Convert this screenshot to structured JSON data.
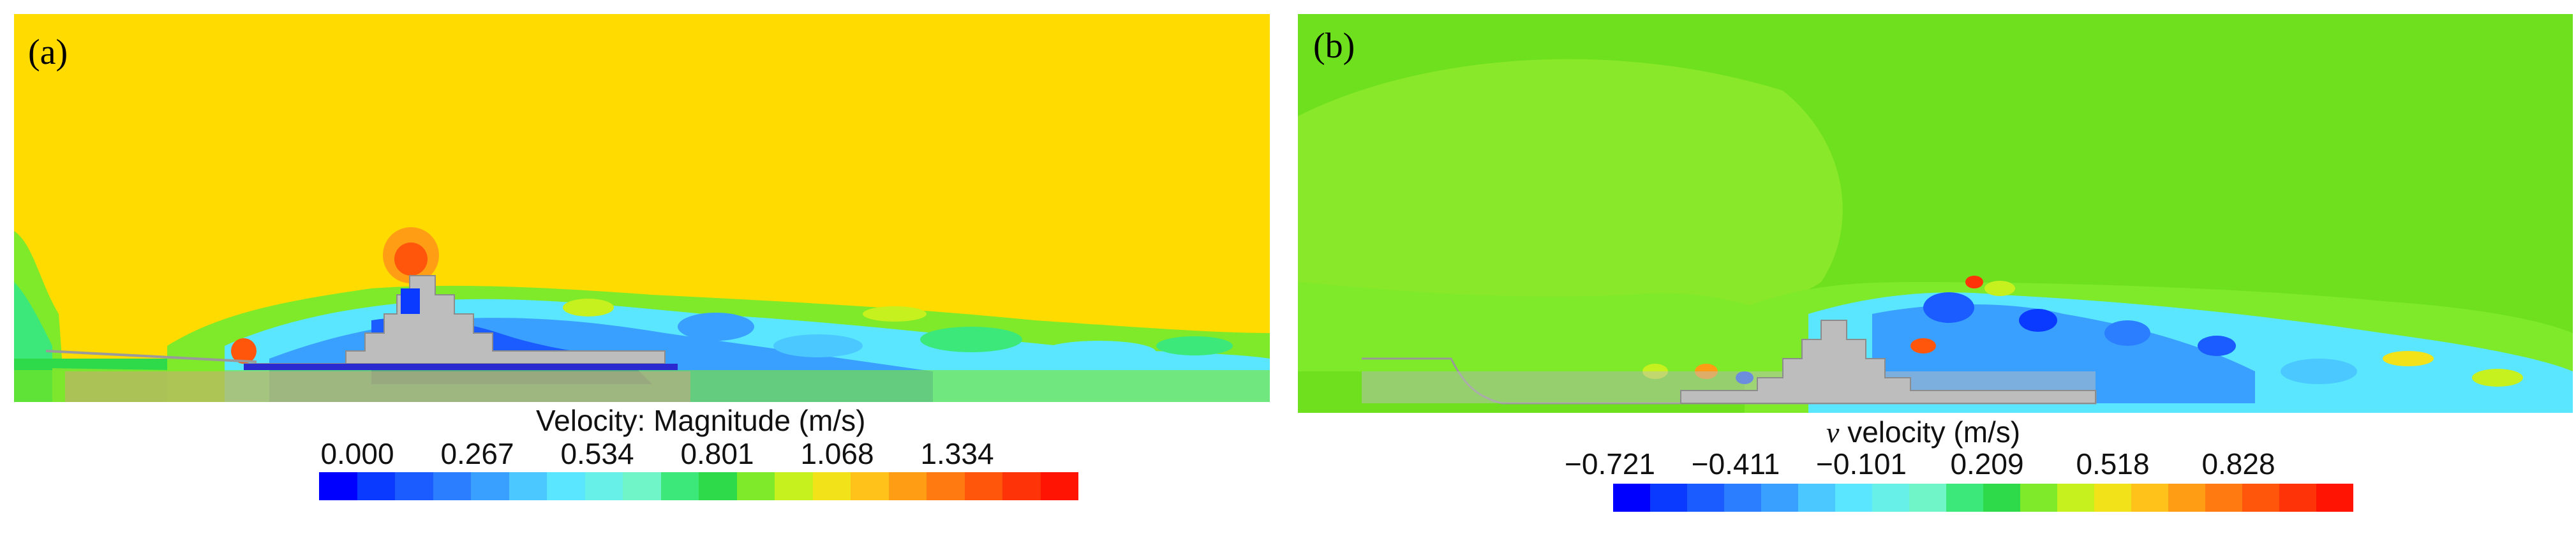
{
  "panels": [
    {
      "label": "(a)",
      "legend": {
        "title": "Velocity: Magnitude (m/s)",
        "ticks": [
          "0.000",
          "0.267",
          "0.534",
          "0.801",
          "1.068",
          "1.334"
        ]
      },
      "background_color": "#FFDB00",
      "colors": [
        "#0000FF",
        "#0A3AFF",
        "#1A5CFF",
        "#2A7EFF",
        "#3AA0FF",
        "#4AC8FF",
        "#5AE6FF",
        "#66F0E8",
        "#6FF5C8",
        "#3CE87A",
        "#2ED94A",
        "#7EEA2A",
        "#C6F01E",
        "#F2E21A",
        "#FFC21A",
        "#FF9E14",
        "#FF7A10",
        "#FF560C",
        "#FF3308",
        "#FF1404"
      ]
    },
    {
      "label": "(b)",
      "legend": {
        "title_symbol": "v",
        "title": "velocity (m/s)",
        "ticks": [
          "−0.721",
          "−0.411",
          "−0.101",
          "0.209",
          "0.518",
          "0.828"
        ]
      },
      "background_color": "#6EE01E",
      "colors": [
        "#0000FF",
        "#0A3AFF",
        "#1A5CFF",
        "#2A7EFF",
        "#3AA0FF",
        "#4AC8FF",
        "#5AE6FF",
        "#66F0E8",
        "#6FF5C8",
        "#3CE87A",
        "#2ED94A",
        "#7EEA2A",
        "#C6F01E",
        "#F2E21A",
        "#FFC21A",
        "#FF9E14",
        "#FF7A10",
        "#FF560C",
        "#FF3308",
        "#FF1404"
      ]
    }
  ]
}
